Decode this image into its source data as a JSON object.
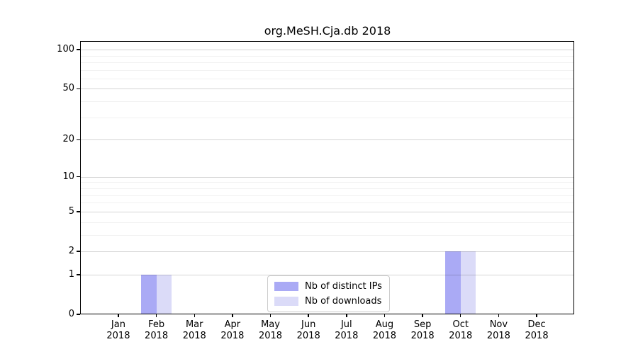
{
  "chart_data": {
    "type": "bar",
    "title": "org.MeSH.Cja.db 2018",
    "x_tick_months": [
      "Jan",
      "Feb",
      "Mar",
      "Apr",
      "May",
      "Jun",
      "Jul",
      "Aug",
      "Sep",
      "Oct",
      "Nov",
      "Dec"
    ],
    "x_tick_year": "2018",
    "series": [
      {
        "name": "Nb of distinct IPs",
        "color": "#aaaaf5",
        "values": [
          0,
          1,
          0,
          0,
          0,
          0,
          0,
          0,
          0,
          2,
          0,
          0
        ]
      },
      {
        "name": "Nb of downloads",
        "color": "#dbdbf8",
        "values": [
          0,
          1,
          0,
          0,
          0,
          0,
          0,
          0,
          0,
          2,
          0,
          0
        ]
      }
    ],
    "yscale": "log1p",
    "ylabel": "",
    "xlabel": "",
    "y_ticks": [
      0,
      1,
      2,
      5,
      10,
      20,
      50,
      100
    ],
    "y_minor_gridlines": [
      3,
      4,
      6,
      7,
      8,
      9,
      30,
      40,
      60,
      70,
      80,
      90
    ],
    "ylim": [
      0,
      114.8
    ],
    "grid": true,
    "gridlines_above_bars": true,
    "legend_position": "lower center",
    "bar_group_width_fraction": 0.8
  }
}
